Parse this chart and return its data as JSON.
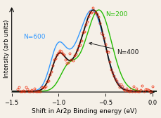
{
  "xlabel": "Shift in Ar2p Binding energy (eV)",
  "ylabel": "Intensity (arb units)",
  "xlim": [
    -1.5,
    0.05
  ],
  "ylim": [
    -0.03,
    1.08
  ],
  "bg_color": "#f5f0e8",
  "color_n600": "#3399ff",
  "color_n200": "#22bb00",
  "color_n400": "#111111",
  "color_data": "#ee2200",
  "label_n600": "N=600",
  "label_n200": "N=200",
  "label_n400": "N=400",
  "xlabel_fontsize": 6.5,
  "ylabel_fontsize": 6.0,
  "tick_fontsize": 6,
  "label_fontsize": 6.5,
  "xticks": [
    -1.5,
    -1.0,
    -0.5,
    0.0
  ]
}
